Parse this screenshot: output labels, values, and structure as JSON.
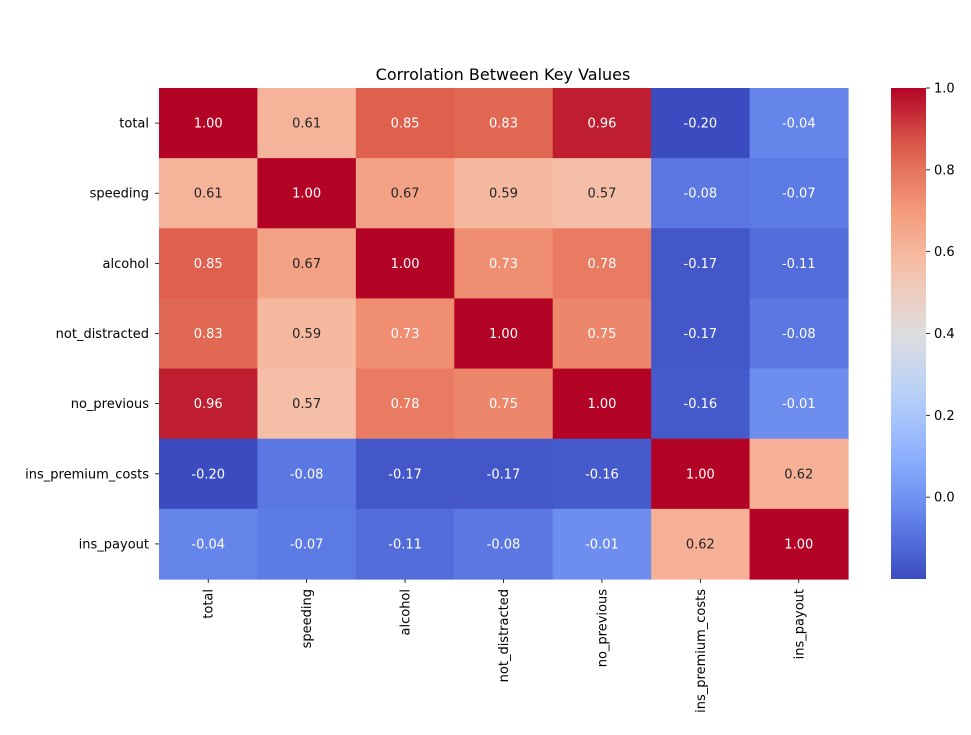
{
  "chart_data": {
    "type": "heatmap",
    "title": "Corrolation Between Key Values",
    "rows": [
      "total",
      "speeding",
      "alcohol",
      "not_distracted",
      "no_previous",
      "ins_premium_costs",
      "ins_payout"
    ],
    "columns": [
      "total",
      "speeding",
      "alcohol",
      "not_distracted",
      "no_previous",
      "ins_premium_costs",
      "ins_payout"
    ],
    "values": [
      [
        1.0,
        0.61,
        0.85,
        0.83,
        0.96,
        -0.2,
        -0.04
      ],
      [
        0.61,
        1.0,
        0.67,
        0.59,
        0.57,
        -0.08,
        -0.07
      ],
      [
        0.85,
        0.67,
        1.0,
        0.73,
        0.78,
        -0.17,
        -0.11
      ],
      [
        0.83,
        0.59,
        0.73,
        1.0,
        0.75,
        -0.17,
        -0.08
      ],
      [
        0.96,
        0.57,
        0.78,
        0.75,
        1.0,
        -0.16,
        -0.01
      ],
      [
        -0.2,
        -0.08,
        -0.17,
        -0.17,
        -0.16,
        1.0,
        0.62
      ],
      [
        -0.04,
        -0.07,
        -0.11,
        -0.08,
        -0.01,
        0.62,
        1.0
      ]
    ],
    "colormap": "coolwarm",
    "color_range": [
      -0.2,
      1.0
    ],
    "colorbar_ticks": [
      "0.0",
      "0.2",
      "0.4",
      "0.6",
      "0.8",
      "1.0"
    ],
    "annotation_format": "2 decimals"
  }
}
